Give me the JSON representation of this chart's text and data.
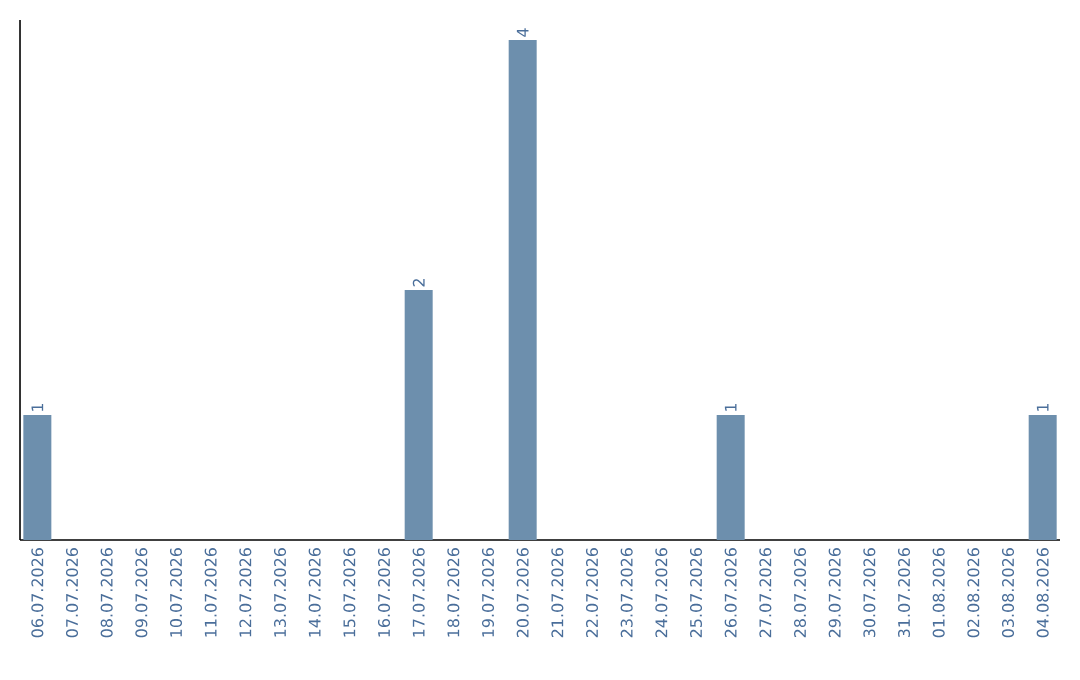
{
  "chart_data": {
    "type": "bar",
    "categories": [
      "06.07.2026",
      "07.07.2026",
      "08.07.2026",
      "09.07.2026",
      "10.07.2026",
      "11.07.2026",
      "12.07.2026",
      "13.07.2026",
      "14.07.2026",
      "15.07.2026",
      "16.07.2026",
      "17.07.2026",
      "18.07.2026",
      "19.07.2026",
      "20.07.2026",
      "21.07.2026",
      "22.07.2026",
      "23.07.2026",
      "24.07.2026",
      "25.07.2026",
      "26.07.2026",
      "27.07.2026",
      "28.07.2026",
      "29.07.2026",
      "30.07.2026",
      "31.07.2026",
      "01.08.2026",
      "02.08.2026",
      "03.08.2026",
      "04.08.2026"
    ],
    "values": [
      1,
      0,
      0,
      0,
      0,
      0,
      0,
      0,
      0,
      0,
      0,
      2,
      0,
      0,
      4,
      0,
      0,
      0,
      0,
      0,
      1,
      0,
      0,
      0,
      0,
      0,
      0,
      0,
      0,
      1
    ],
    "value_labels": [
      "1",
      null,
      null,
      null,
      null,
      null,
      null,
      null,
      null,
      null,
      null,
      "2",
      null,
      null,
      "4",
      null,
      null,
      null,
      null,
      null,
      "1",
      null,
      null,
      null,
      null,
      null,
      null,
      null,
      null,
      "1"
    ],
    "color": "#6d8fad",
    "tick_labels": "x",
    "grid": false
  }
}
